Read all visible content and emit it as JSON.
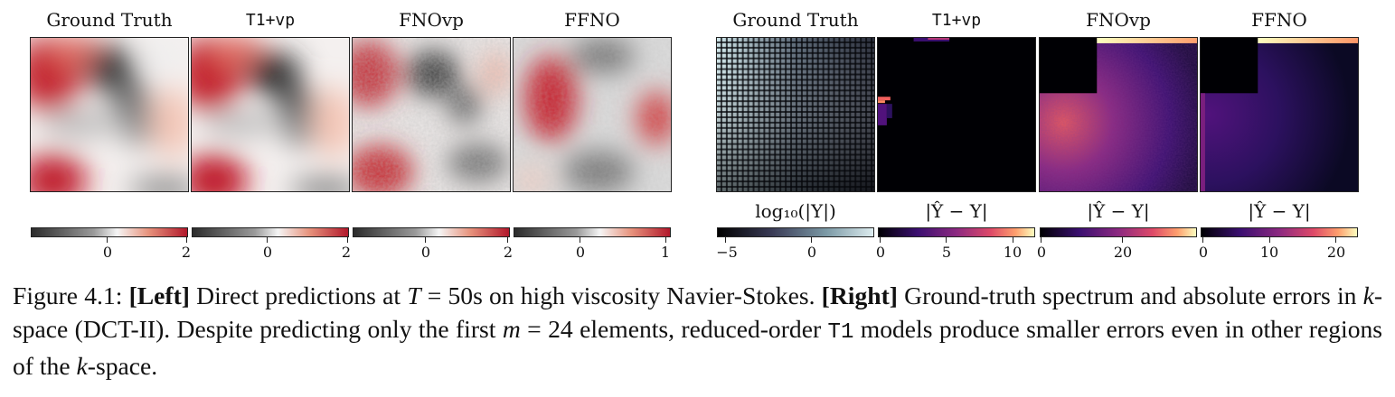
{
  "figure": {
    "left_titles": [
      "Ground Truth",
      "T1+vp",
      "FNOvp",
      "FFNO"
    ],
    "right_titles": [
      "Ground Truth",
      "T1+vp",
      "FNOvp",
      "FFNO"
    ],
    "left_colorbars": [
      {
        "ticks": [
          "0",
          "2"
        ]
      },
      {
        "ticks": [
          "0",
          "2"
        ]
      },
      {
        "ticks": [
          "0",
          "2"
        ]
      },
      {
        "ticks": [
          "0",
          "1"
        ]
      }
    ],
    "right_colorbars": [
      {
        "label": "log₁₀(|Y|)",
        "ticks": [
          "−5",
          "0"
        ]
      },
      {
        "label": "|Ŷ − Y|",
        "ticks": [
          "0",
          "5",
          "10"
        ]
      },
      {
        "label": "|Ŷ − Y|",
        "ticks": [
          "0",
          "20"
        ]
      },
      {
        "label": "|Ŷ − Y|",
        "ticks": [
          "0",
          "10",
          "20"
        ]
      }
    ],
    "colors": {
      "diverging_low": "#3a3a3a",
      "diverging_mid": "#f5f5f5",
      "diverging_high": "#b2182b",
      "bone_low": "#000000",
      "bone_high": "#ddecef",
      "magma_low": "#000004",
      "magma_high": "#fcfdbf"
    }
  },
  "caption": {
    "label": "Figure 4.1:",
    "left_tag": "[Left]",
    "text_1": "Direct predictions at",
    "var_T": "T",
    "eq": "=",
    "text_2": "50s on high viscosity Navier-Stokes.",
    "right_tag": "[Right]",
    "text_3": "Ground-truth spectrum and absolute errors in",
    "var_k": "k",
    "text_4": "-space (DCT-II). Despite predicting only the first",
    "var_m": "m",
    "eq2": "=",
    "text_5": "24 elements, reduced-order",
    "mono_T1": "T1",
    "text_6": "models produce smaller errors even in other regions of the",
    "var_k2": "k",
    "text_7": "-space."
  }
}
